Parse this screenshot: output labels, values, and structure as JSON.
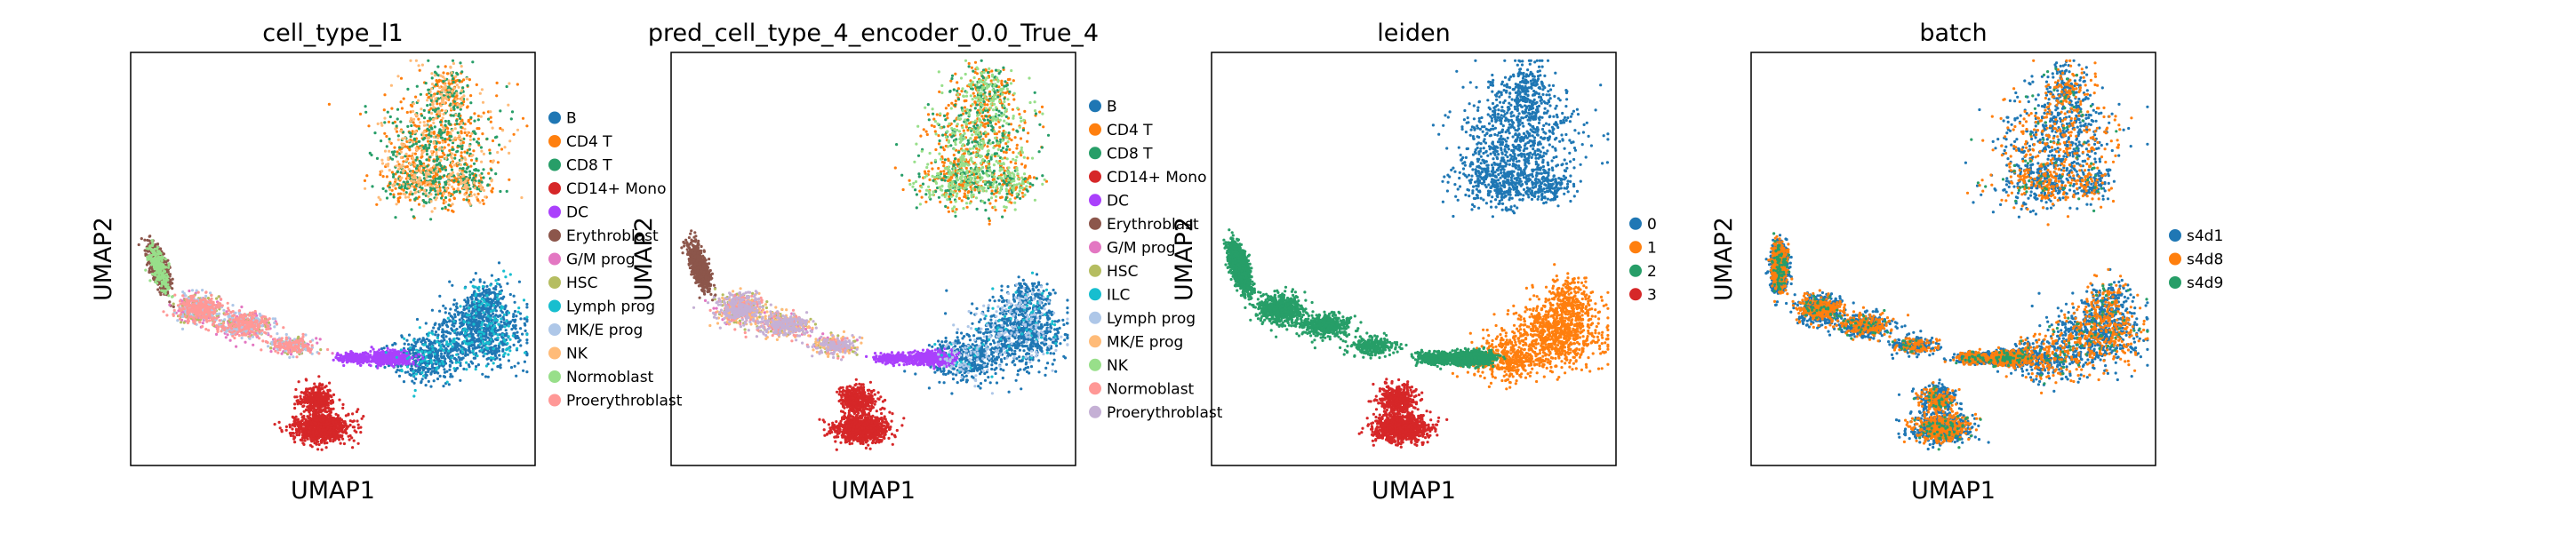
{
  "figure": {
    "x_axis_label": "UMAP1",
    "y_axis_label": "UMAP2"
  },
  "chart_data": [
    {
      "type": "scatter",
      "title": "cell_type_l1",
      "xlabel": "UMAP1",
      "ylabel": "UMAP2",
      "legend": "right, outside",
      "grid": false,
      "series": [
        {
          "name": "B",
          "color": "#1f77b4",
          "region": "right-cluster",
          "share": 0.85
        },
        {
          "name": "CD4 T",
          "color": "#ff7f0e",
          "region": "top-cluster",
          "share": 0.4
        },
        {
          "name": "CD8 T",
          "color": "#279e68",
          "region": "top-cluster",
          "share": 0.35
        },
        {
          "name": "CD14+ Mono",
          "color": "#d62728",
          "region": "bottom-cluster",
          "share": 0.9
        },
        {
          "name": "DC",
          "color": "#aa40fc",
          "region": "bridge",
          "share": 0.5
        },
        {
          "name": "Erythroblast",
          "color": "#8c564b",
          "region": "left-tail",
          "share": 0.5
        },
        {
          "name": "G/M prog",
          "color": "#e377c2",
          "region": "strand",
          "share": 0.2
        },
        {
          "name": "HSC",
          "color": "#b5bd61",
          "region": "strand",
          "share": 0.15
        },
        {
          "name": "Lymph prog",
          "color": "#17becf",
          "region": "right-cluster",
          "share": 0.15
        },
        {
          "name": "MK/E prog",
          "color": "#aec7e8",
          "region": "strand",
          "share": 0.25
        },
        {
          "name": "NK",
          "color": "#ffbb78",
          "region": "top-cluster",
          "share": 0.25
        },
        {
          "name": "Normoblast",
          "color": "#98df8a",
          "region": "left-tail",
          "share": 0.15
        },
        {
          "name": "Proerythroblast",
          "color": "#ff9896",
          "region": "strand",
          "share": 0.4
        }
      ]
    },
    {
      "type": "scatter",
      "title": "pred_cell_type_4_encoder_0.0_True_4",
      "xlabel": "UMAP1",
      "ylabel": "UMAP2",
      "legend": "right, outside",
      "grid": false,
      "series": [
        {
          "name": "B",
          "color": "#1f77b4",
          "region": "right-cluster",
          "share": 0.8
        },
        {
          "name": "CD4 T",
          "color": "#ff7f0e",
          "region": "top-cluster",
          "share": 0.4
        },
        {
          "name": "CD8 T",
          "color": "#279e68",
          "region": "top-cluster",
          "share": 0.25
        },
        {
          "name": "CD14+ Mono",
          "color": "#d62728",
          "region": "bottom-cluster",
          "share": 0.95
        },
        {
          "name": "DC",
          "color": "#aa40fc",
          "region": "bridge",
          "share": 0.5
        },
        {
          "name": "Erythroblast",
          "color": "#8c564b",
          "region": "left-tail",
          "share": 0.55
        },
        {
          "name": "G/M prog",
          "color": "#e377c2",
          "region": "strand",
          "share": 0.1
        },
        {
          "name": "HSC",
          "color": "#b5bd61",
          "region": "strand",
          "share": 0.15
        },
        {
          "name": "ILC",
          "color": "#17becf",
          "region": "right-cluster",
          "share": 0.05
        },
        {
          "name": "Lymph prog",
          "color": "#aec7e8",
          "region": "right-cluster",
          "share": 0.15
        },
        {
          "name": "MK/E prog",
          "color": "#ffbb78",
          "region": "strand",
          "share": 0.25
        },
        {
          "name": "NK",
          "color": "#98df8a",
          "region": "top-cluster",
          "share": 0.35
        },
        {
          "name": "Normoblast",
          "color": "#ff9896",
          "region": "strand",
          "share": 0.15
        },
        {
          "name": "Proerythroblast",
          "color": "#c5b0d5",
          "region": "strand",
          "share": 0.4
        }
      ]
    },
    {
      "type": "scatter",
      "title": "leiden",
      "xlabel": "UMAP1",
      "ylabel": "UMAP2",
      "legend": "right, outside",
      "grid": false,
      "series": [
        {
          "name": "0",
          "color": "#1f77b4",
          "region": "top-cluster",
          "share": 1.0
        },
        {
          "name": "1",
          "color": "#ff7f0e",
          "region": "right-cluster",
          "share": 1.0
        },
        {
          "name": "2",
          "color": "#279e68",
          "region": "left-tail+strand+bridge",
          "share": 1.0
        },
        {
          "name": "3",
          "color": "#d62728",
          "region": "bottom-cluster",
          "share": 1.0
        }
      ]
    },
    {
      "type": "scatter",
      "title": "batch",
      "xlabel": "UMAP1",
      "ylabel": "UMAP2",
      "legend": "right, outside",
      "grid": false,
      "series": [
        {
          "name": "s4d1",
          "color": "#1f77b4",
          "region": "all",
          "share": 0.6
        },
        {
          "name": "s4d8",
          "color": "#ff7f0e",
          "region": "all",
          "share": 0.35
        },
        {
          "name": "s4d9",
          "color": "#279e68",
          "region": "all",
          "share": 0.05
        }
      ]
    }
  ]
}
